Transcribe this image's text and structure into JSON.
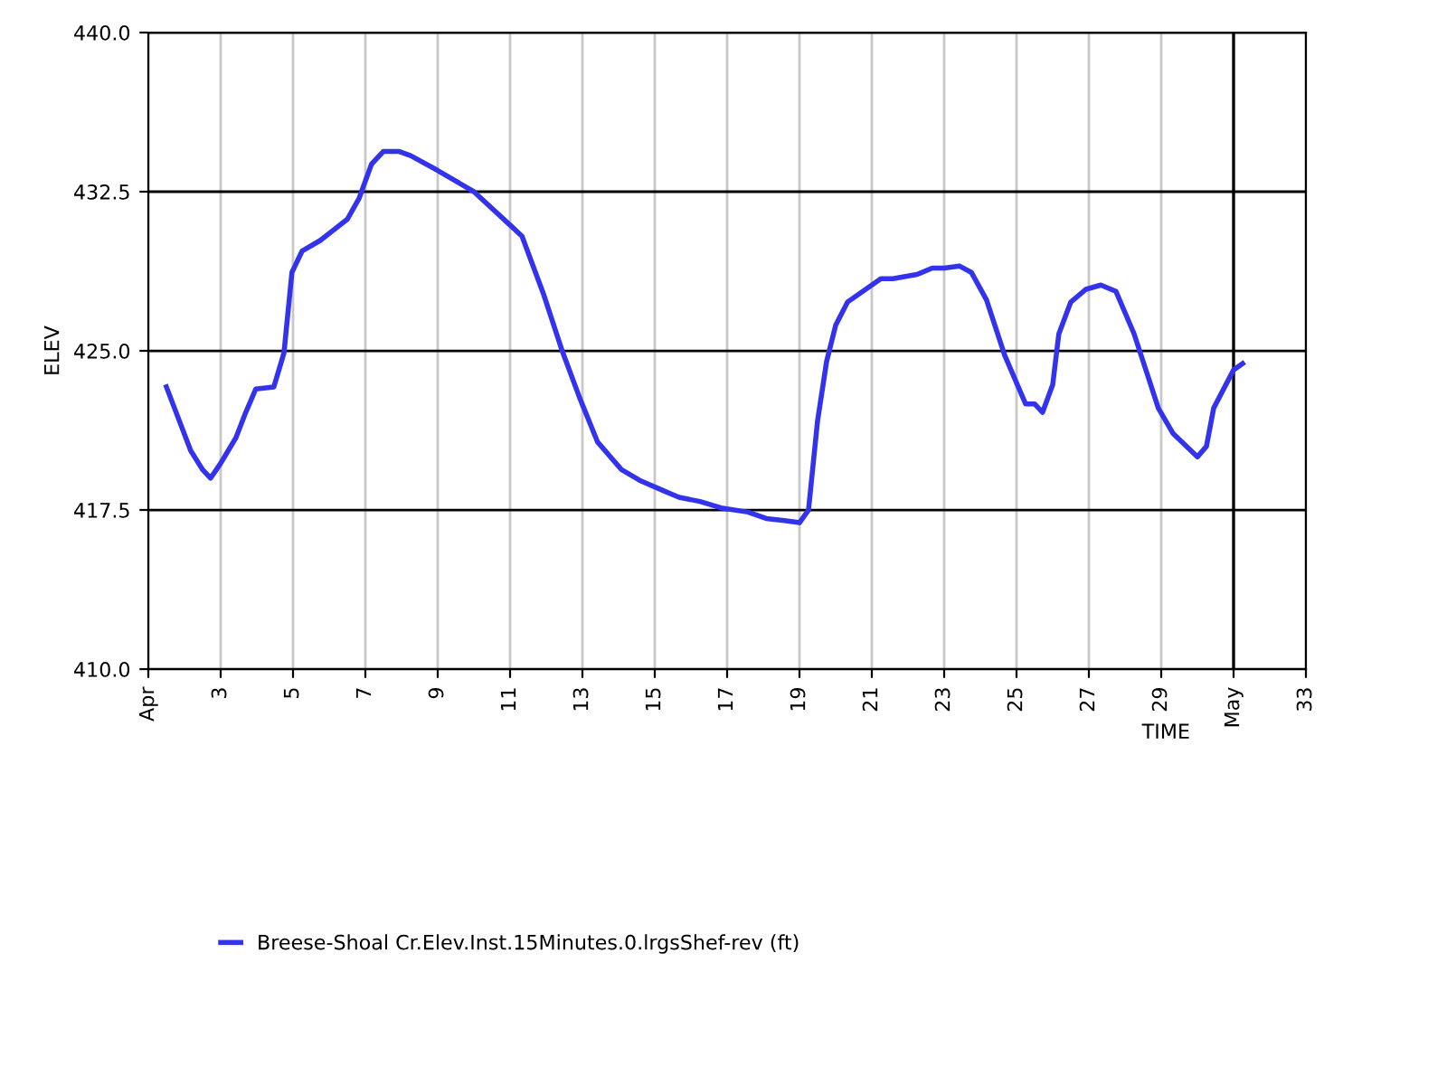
{
  "chart_data": {
    "type": "line",
    "xlabel": "TIME",
    "ylabel": "ELEV",
    "xlim": [
      1,
      33
    ],
    "xticks": [
      {
        "value": 1,
        "label": "Apr"
      },
      3,
      5,
      7,
      9,
      11,
      13,
      15,
      17,
      19,
      21,
      23,
      25,
      27,
      29,
      {
        "value": 31,
        "label": "May"
      },
      33
    ],
    "ylim": [
      410,
      440
    ],
    "yticks": [
      {
        "value": 410,
        "label": "410.0"
      },
      {
        "value": 417.5,
        "label": "417.5"
      },
      {
        "value": 425,
        "label": "425.0"
      },
      {
        "value": 432.5,
        "label": "432.5"
      },
      {
        "value": 440,
        "label": "440.0"
      }
    ],
    "grid": true,
    "legend": "bottom",
    "marker": "none",
    "line_style": "solid",
    "ref_lines": [
      {
        "axis": "x",
        "value": 31,
        "color": "#000000"
      }
    ],
    "series": [
      {
        "name": "Breese-Shoal Cr.Elev.Inst.15Minutes.0.lrgsShef-rev (ft)",
        "color": "#3333ee",
        "x": [
          1.5,
          2.17,
          2.5,
          2.72,
          3.0,
          3.42,
          3.67,
          3.97,
          4.47,
          4.75,
          4.97,
          5.25,
          5.75,
          6.5,
          6.83,
          7.17,
          7.5,
          7.92,
          8.25,
          9.0,
          10.0,
          11.08,
          11.33,
          11.92,
          12.42,
          12.92,
          13.42,
          14.08,
          14.58,
          15.25,
          15.67,
          16.25,
          16.83,
          17.58,
          18.08,
          18.58,
          19.0,
          19.25,
          19.5,
          19.75,
          20.0,
          20.33,
          20.75,
          21.25,
          21.58,
          22.25,
          22.67,
          23.0,
          23.42,
          23.75,
          24.17,
          24.67,
          25.25,
          25.5,
          25.72,
          26.0,
          26.17,
          26.5,
          26.92,
          27.33,
          27.75,
          28.25,
          28.92,
          29.33,
          30.0,
          30.25,
          30.45,
          31.0,
          31.25
        ],
        "values": [
          423.3,
          420.3,
          419.4,
          419.0,
          419.7,
          420.9,
          422.0,
          423.2,
          423.3,
          424.9,
          428.7,
          429.7,
          430.2,
          431.2,
          432.2,
          433.8,
          434.4,
          434.4,
          434.2,
          433.5,
          432.5,
          430.8,
          430.4,
          427.7,
          425.1,
          422.8,
          420.7,
          419.4,
          418.9,
          418.4,
          418.1,
          417.9,
          417.6,
          417.4,
          417.1,
          417.0,
          416.9,
          417.5,
          421.7,
          424.5,
          426.2,
          427.3,
          427.8,
          428.4,
          428.4,
          428.6,
          428.9,
          428.9,
          429.0,
          428.7,
          427.4,
          424.8,
          422.5,
          422.5,
          422.1,
          423.4,
          425.8,
          427.3,
          427.9,
          428.1,
          427.8,
          425.8,
          422.3,
          421.1,
          420.0,
          420.5,
          422.3,
          424.1,
          424.4
        ]
      }
    ]
  }
}
